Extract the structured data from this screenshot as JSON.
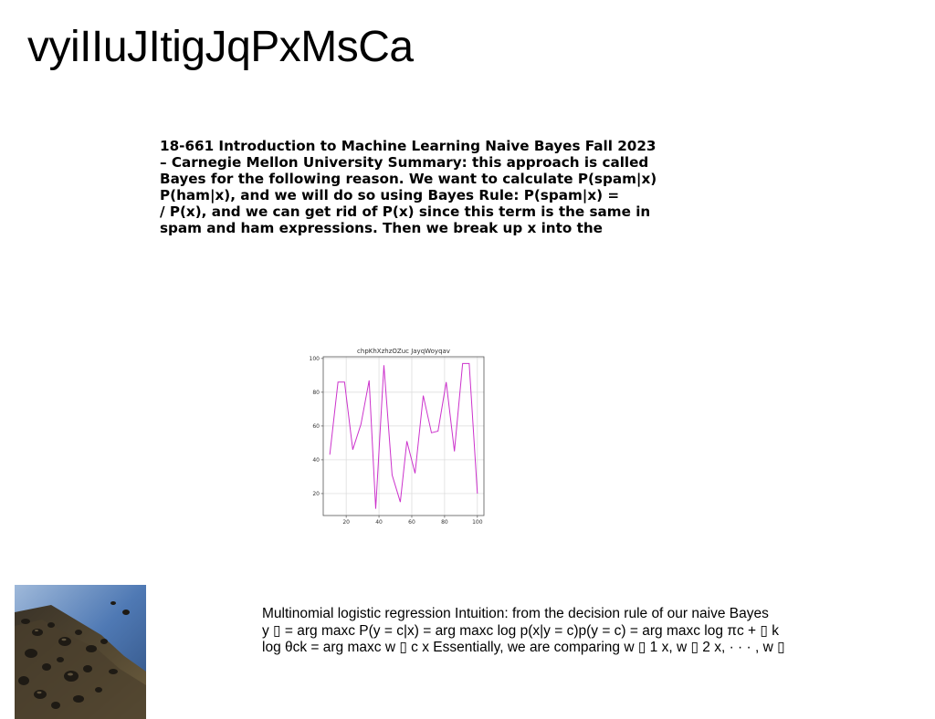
{
  "title": "vyiIIuJItigJqPxMsCa",
  "summary_lines": [
    "18-661 Introduction to Machine Learning Naive Bayes Fall 2023",
    "– Carnegie Mellon University Summary: this approach is called",
    "Bayes for the following reason. We want to calculate P(spam|x)",
    "P(ham|x), and we will do so using Bayes Rule: P(spam|x) =",
    "/ P(x), and we can get rid of P(x) since this term is the same in",
    "spam and ham expressions. Then we break up x into the"
  ],
  "chart_data": {
    "type": "line",
    "title": "chpKhXzhzOZuc JayqWoyqav",
    "xlabel": "",
    "ylabel": "",
    "xlim": [
      6,
      104
    ],
    "ylim": [
      7,
      101
    ],
    "x_ticks": [
      20,
      40,
      60,
      80,
      100
    ],
    "y_ticks": [
      20,
      40,
      60,
      80,
      100
    ],
    "grid": true,
    "color": "#cc33cc",
    "series": [
      {
        "x": [
          10,
          15,
          19,
          24,
          29,
          34,
          38,
          43,
          48,
          53,
          57,
          62,
          67,
          72,
          76,
          81,
          86,
          91,
          95,
          100
        ],
        "values": [
          43,
          86,
          86,
          46,
          61,
          87,
          11,
          96,
          31,
          15,
          51,
          32,
          78,
          56,
          57,
          86,
          45,
          97,
          97,
          20
        ]
      }
    ]
  },
  "photo": {
    "description_icon": "pebble-beach-photo"
  },
  "body_lines": [
    "Multinomial logistic regression Intuition: from the decision rule of our naive Bayes",
    "y ▯ = arg maxc P(y = c|x) = arg maxc log p(x|y = c)p(y = c) = arg maxc log πc + ▯ k",
    "log θck = arg maxc w ▯ c x Essentially, we are comparing w ▯ 1 x, w ▯ 2 x, · · · , w ▯"
  ]
}
